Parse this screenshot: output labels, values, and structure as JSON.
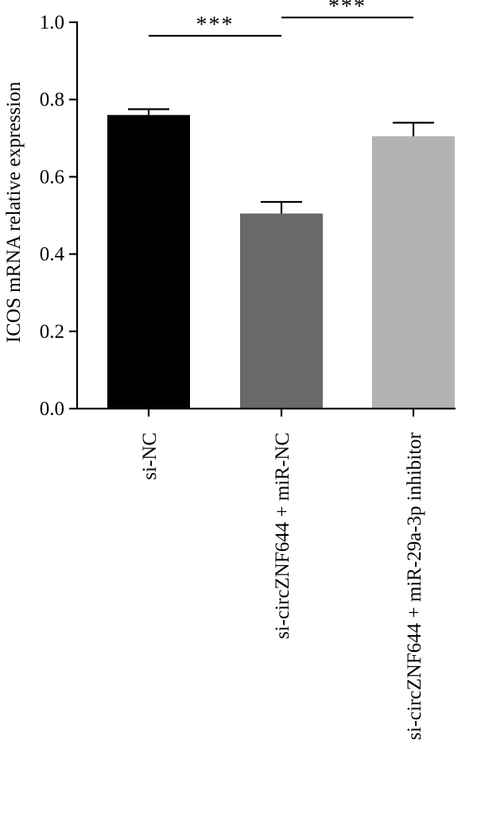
{
  "chart_data": {
    "type": "bar",
    "categories": [
      "si-NC",
      "si-circZNF644 + miR-NC",
      "si-circZNF644 + miR-29a-3p inhibitor"
    ],
    "values": [
      0.76,
      0.505,
      0.705
    ],
    "errors": [
      0.015,
      0.03,
      0.035
    ],
    "colors": [
      "#000000",
      "#696969",
      "#b3b3b3"
    ],
    "ylabel": "ICOS mRNA relative expression",
    "xlabel": "",
    "ylim": [
      0,
      1.0
    ],
    "yticks": [
      "0.0",
      "0.2",
      "0.4",
      "0.6",
      "0.8",
      "1.0"
    ],
    "grid": false,
    "significance": [
      {
        "from": 0,
        "to": 1,
        "label": "***"
      },
      {
        "from": 1,
        "to": 2,
        "label": "***"
      }
    ]
  }
}
